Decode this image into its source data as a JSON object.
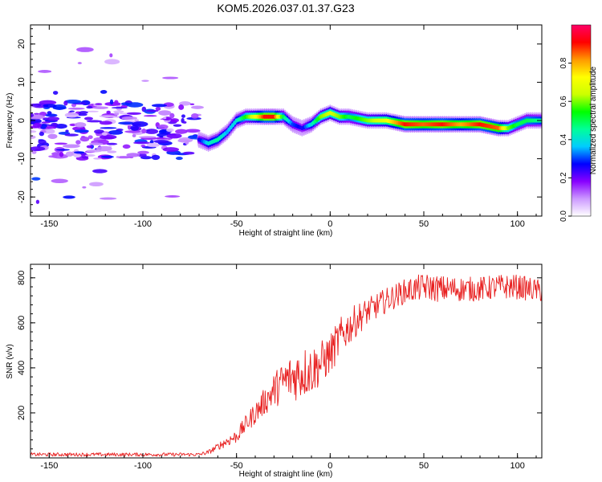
{
  "title": "KOM5.2026.037.01.37.G23",
  "chart_data": [
    {
      "type": "heatmap",
      "xlabel": "Height of straight line (km)",
      "ylabel": "Frequency (Hz)",
      "xlim": [
        -160,
        113
      ],
      "ylim": [
        -25,
        25
      ],
      "xticks": [
        -150,
        -100,
        -50,
        0,
        50,
        100
      ],
      "yticks": [
        -20,
        -10,
        0,
        10,
        20
      ],
      "colorbar": {
        "label": "Normalized spectral amplitude",
        "range": [
          0,
          1
        ],
        "ticks": [
          "0.0",
          "0.2",
          "0.4",
          "0.6",
          "0.8"
        ],
        "colors": [
          "#ffffff",
          "#cc99ff",
          "#8800ff",
          "#0000ff",
          "#00ccff",
          "#00ff99",
          "#00ff00",
          "#ccff00",
          "#ffff00",
          "#ff9900",
          "#ff0000",
          "#ff0066"
        ]
      },
      "ridge_x": [
        -70,
        -65,
        -60,
        -55,
        -50,
        -45,
        -40,
        -35,
        -30,
        -25,
        -20,
        -15,
        -10,
        -5,
        0,
        5,
        10,
        20,
        30,
        40,
        50,
        60,
        70,
        80,
        90,
        95,
        100,
        105,
        113
      ],
      "ridge_freq": [
        -5,
        -6,
        -5,
        -3,
        0,
        1,
        1,
        1,
        1,
        1,
        -1,
        -2,
        -1,
        1,
        2,
        1,
        1,
        0,
        0,
        -1,
        -1,
        -1,
        -1,
        -1,
        -2,
        -2,
        -1,
        0,
        0
      ],
      "ridge_amplitude": [
        0.25,
        0.4,
        0.45,
        0.35,
        0.4,
        0.55,
        0.7,
        0.9,
        0.9,
        0.5,
        0.3,
        0.25,
        0.4,
        0.6,
        0.65,
        0.6,
        0.5,
        0.6,
        0.7,
        0.9,
        0.85,
        0.9,
        0.8,
        0.9,
        0.85,
        0.6,
        0.5,
        0.5,
        0.45
      ],
      "noise_region_x": [
        -160,
        -70
      ],
      "noise_band_freq": [
        -10,
        5
      ],
      "noise_amplitude_max": 0.2
    },
    {
      "type": "line",
      "xlabel": "Height of straight line (km)",
      "ylabel": "SNR (v/v)",
      "xlim": [
        -160,
        113
      ],
      "ylim": [
        0,
        860
      ],
      "xticks": [
        -150,
        -100,
        -50,
        0,
        50,
        100
      ],
      "yticks": [
        200,
        400,
        600,
        800
      ],
      "color": "#e82020",
      "x": [
        -160,
        -140,
        -120,
        -100,
        -80,
        -70,
        -65,
        -60,
        -55,
        -50,
        -45,
        -40,
        -35,
        -30,
        -25,
        -20,
        -15,
        -10,
        -5,
        0,
        5,
        10,
        15,
        20,
        30,
        40,
        50,
        60,
        70,
        80,
        90,
        100,
        113
      ],
      "y": [
        15,
        15,
        15,
        15,
        15,
        15,
        25,
        50,
        75,
        95,
        150,
        200,
        250,
        300,
        340,
        360,
        380,
        390,
        420,
        460,
        530,
        580,
        620,
        650,
        700,
        740,
        760,
        750,
        750,
        750,
        760,
        760,
        740
      ],
      "noise_amplitude": [
        8,
        8,
        8,
        8,
        8,
        8,
        10,
        15,
        25,
        30,
        40,
        50,
        60,
        80,
        90,
        110,
        120,
        110,
        100,
        90,
        90,
        80,
        70,
        60,
        55,
        55,
        60,
        60,
        55,
        55,
        55,
        55,
        50
      ]
    }
  ]
}
